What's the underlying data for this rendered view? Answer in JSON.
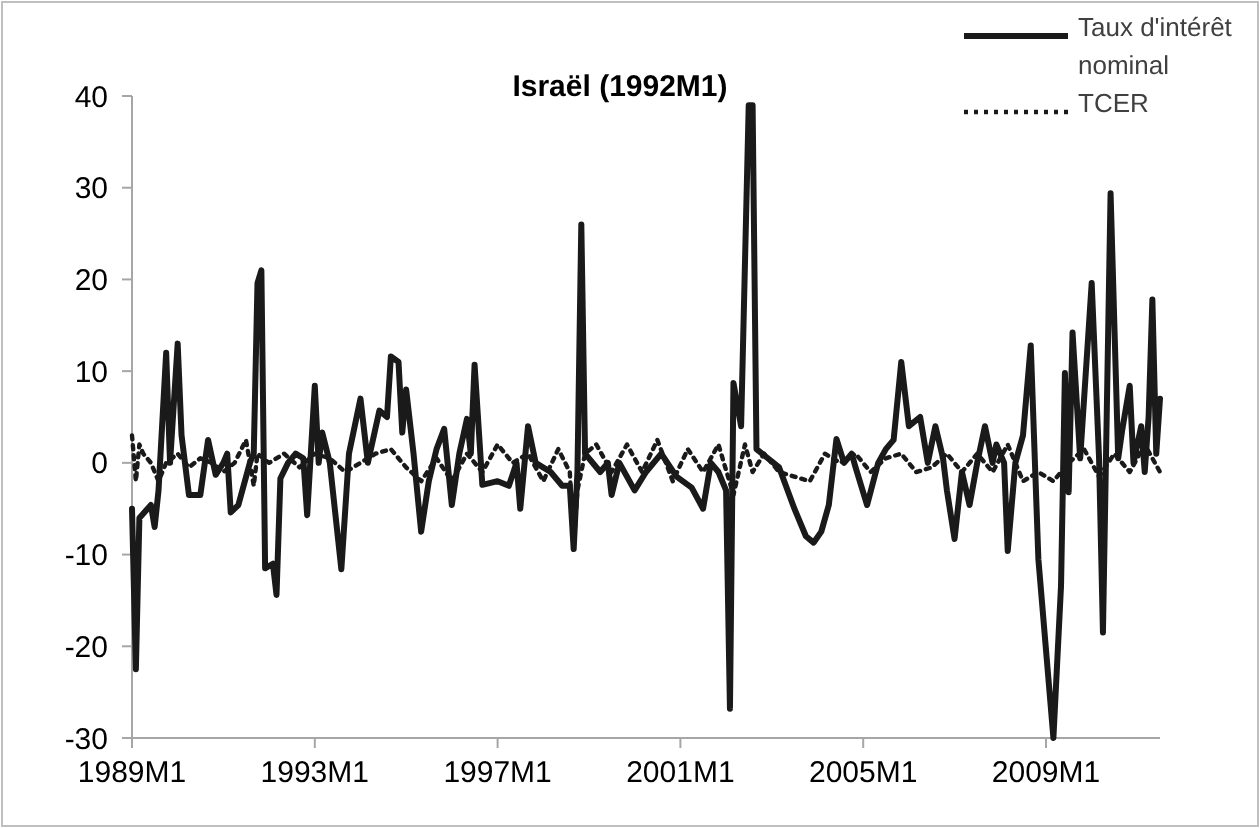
{
  "chart_data": {
    "type": "line",
    "title": "Israël (1992M1)",
    "legend": "top right",
    "grid": false,
    "xlim": [
      "1989-01",
      "2011-07"
    ],
    "xticks": [
      {
        "value": "1989-01",
        "label": "1989M1"
      },
      {
        "value": "1993-01",
        "label": "1993M1"
      },
      {
        "value": "1997-01",
        "label": "1997M1"
      },
      {
        "value": "2001-01",
        "label": "2001M1"
      },
      {
        "value": "2005-01",
        "label": "2005M1"
      },
      {
        "value": "2009-01",
        "label": "2009M1"
      }
    ],
    "ylim": [
      -30,
      40
    ],
    "yticks": [
      -30,
      -20,
      -10,
      0,
      10,
      20,
      30,
      40
    ],
    "series": [
      {
        "name": "Taux d'intérêt nominal",
        "color": "#1a1a1a",
        "line_style": "solid",
        "x": [
          "1989-01",
          "1989-02",
          "1989-03",
          "1989-06",
          "1989-07",
          "1989-08",
          "1989-10",
          "1989-11",
          "1990-01",
          "1990-02",
          "1990-04",
          "1990-07",
          "1990-09",
          "1990-11",
          "1991-01",
          "1991-02",
          "1991-03",
          "1991-05",
          "1991-08",
          "1991-09",
          "1991-10",
          "1991-11",
          "1991-12",
          "1992-02",
          "1992-03",
          "1992-04",
          "1992-06",
          "1992-08",
          "1992-10",
          "1992-11",
          "1993-01",
          "1993-02",
          "1993-03",
          "1993-05",
          "1993-08",
          "1993-10",
          "1994-01",
          "1994-03",
          "1994-06",
          "1994-08",
          "1994-09",
          "1994-11",
          "1994-12",
          "1995-01",
          "1995-03",
          "1995-05",
          "1995-07",
          "1995-09",
          "1995-11",
          "1996-01",
          "1996-03",
          "1996-05",
          "1996-06",
          "1996-07",
          "1996-09",
          "1997-01",
          "1997-04",
          "1997-06",
          "1997-07",
          "1997-09",
          "1997-11",
          "1998-03",
          "1998-06",
          "1998-08",
          "1998-09",
          "1998-10",
          "1998-11",
          "1998-12",
          "1999-04",
          "1999-06",
          "1999-07",
          "1999-09",
          "2000-01",
          "2000-04",
          "2000-08",
          "2000-12",
          "2001-04",
          "2001-07",
          "2001-09",
          "2001-11",
          "2002-01",
          "2002-02",
          "2002-03",
          "2002-05",
          "2002-07",
          "2002-08",
          "2002-09",
          "2002-12",
          "2003-03",
          "2003-07",
          "2003-10",
          "2003-12",
          "2004-02",
          "2004-04",
          "2004-06",
          "2004-08",
          "2004-10",
          "2004-11",
          "2005-02",
          "2005-05",
          "2005-07",
          "2005-09",
          "2005-11",
          "2006-01",
          "2006-04",
          "2006-06",
          "2006-08",
          "2006-10",
          "2006-11",
          "2007-01",
          "2007-03",
          "2007-05",
          "2007-07",
          "2007-09",
          "2007-11",
          "2007-12",
          "2008-02",
          "2008-03",
          "2008-05",
          "2008-07",
          "2008-09",
          "2008-11",
          "2009-03",
          "2009-05",
          "2009-06",
          "2009-07",
          "2009-08",
          "2009-10",
          "2010-01",
          "2010-03",
          "2010-04",
          "2010-06",
          "2010-08",
          "2010-09",
          "2010-11",
          "2010-12",
          "2011-02",
          "2011-03",
          "2011-04",
          "2011-05",
          "2011-06",
          "2011-07"
        ],
        "values": [
          -5,
          -22.5,
          -6,
          -4.6,
          -7,
          -3,
          12,
          0,
          13,
          3,
          -3.5,
          -3.5,
          2.5,
          -1.3,
          0,
          1,
          -5.4,
          -4.6,
          0,
          1,
          19.6,
          21,
          -11.5,
          -11,
          -14.4,
          -1.7,
          0,
          1,
          0.5,
          -5.7,
          8.4,
          0,
          3.3,
          0,
          -11.6,
          1,
          7,
          0,
          5.7,
          5,
          11.6,
          11,
          3.3,
          8,
          1,
          -7.5,
          -2,
          1.5,
          3.7,
          -4.6,
          1,
          4.8,
          1,
          10.7,
          -2.4,
          -2,
          -2.5,
          0,
          -5,
          4,
          0,
          -1,
          -2.5,
          -2.5,
          -9.4,
          -1,
          26,
          1,
          -1,
          0,
          -3.5,
          0,
          -3,
          -1,
          1,
          -1.5,
          -2.7,
          -5,
          0,
          -1,
          -3,
          -26.8,
          8.7,
          4,
          39,
          39,
          1.5,
          0.5,
          -0.5,
          -5,
          -8,
          -8.7,
          -7.5,
          -4.6,
          2.6,
          0,
          1,
          -0.5,
          -4.6,
          0,
          1.5,
          2.5,
          11,
          4,
          5,
          0,
          4,
          0.5,
          -3,
          -8.3,
          -1,
          -4.6,
          0,
          4,
          0,
          2,
          0,
          -9.6,
          0,
          3,
          12.8,
          -10.5,
          -30,
          -13.4,
          9.8,
          -3.2,
          14.2,
          0.5,
          19.6,
          0.5,
          -18.5,
          29.4,
          0.5,
          3.5,
          8.4,
          0,
          4,
          -1,
          5,
          17.8,
          1,
          7
        ]
      },
      {
        "name": "TCER",
        "color": "#1a1a1a",
        "line_style": "dotted",
        "x": [
          "1989-01",
          "1989-02",
          "1989-03",
          "1989-04",
          "1989-06",
          "1989-08",
          "1989-10",
          "1990-01",
          "1990-04",
          "1990-07",
          "1990-10",
          "1991-01",
          "1991-04",
          "1991-07",
          "1991-09",
          "1991-10",
          "1992-01",
          "1992-05",
          "1992-09",
          "1993-01",
          "1993-05",
          "1993-09",
          "1994-01",
          "1994-05",
          "1994-09",
          "1995-01",
          "1995-05",
          "1995-09",
          "1996-01",
          "1996-05",
          "1996-09",
          "1997-01",
          "1997-05",
          "1997-09",
          "1998-01",
          "1998-05",
          "1998-08",
          "1998-09",
          "1998-10",
          "1998-12",
          "1999-03",
          "1999-07",
          "1999-11",
          "2000-03",
          "2000-07",
          "2000-11",
          "2001-03",
          "2001-07",
          "2001-11",
          "2002-03",
          "2002-06",
          "2002-08",
          "2002-11",
          "2003-03",
          "2003-07",
          "2003-11",
          "2004-03",
          "2004-07",
          "2004-11",
          "2005-03",
          "2005-07",
          "2005-11",
          "2006-03",
          "2006-07",
          "2006-11",
          "2007-03",
          "2007-07",
          "2007-11",
          "2008-03",
          "2008-07",
          "2008-11",
          "2009-03",
          "2009-07",
          "2009-11",
          "2010-03",
          "2010-07",
          "2010-11",
          "2011-03",
          "2011-07"
        ],
        "values": [
          3,
          -2,
          2,
          1,
          0,
          -2,
          0,
          1,
          -0.5,
          0.5,
          0,
          -1,
          0,
          2.5,
          -2.5,
          1,
          0,
          1,
          -0.5,
          1,
          0.5,
          -1,
          0,
          1,
          1.5,
          -0.5,
          -2,
          0.5,
          -2,
          1,
          -1,
          2,
          0,
          1,
          -2,
          1.5,
          -1,
          -9,
          -3,
          1,
          2,
          -1,
          2,
          -1,
          2.5,
          -2,
          1.5,
          -1,
          2,
          -3.5,
          2,
          -1,
          1,
          -1,
          -1.5,
          -2,
          1,
          0,
          1,
          -1,
          0.5,
          1,
          -1,
          -0.5,
          1,
          -1,
          1,
          -1,
          2,
          -2,
          -1,
          -2,
          0,
          1.5,
          -1.5,
          1,
          -1,
          2,
          -1
        ]
      }
    ]
  }
}
